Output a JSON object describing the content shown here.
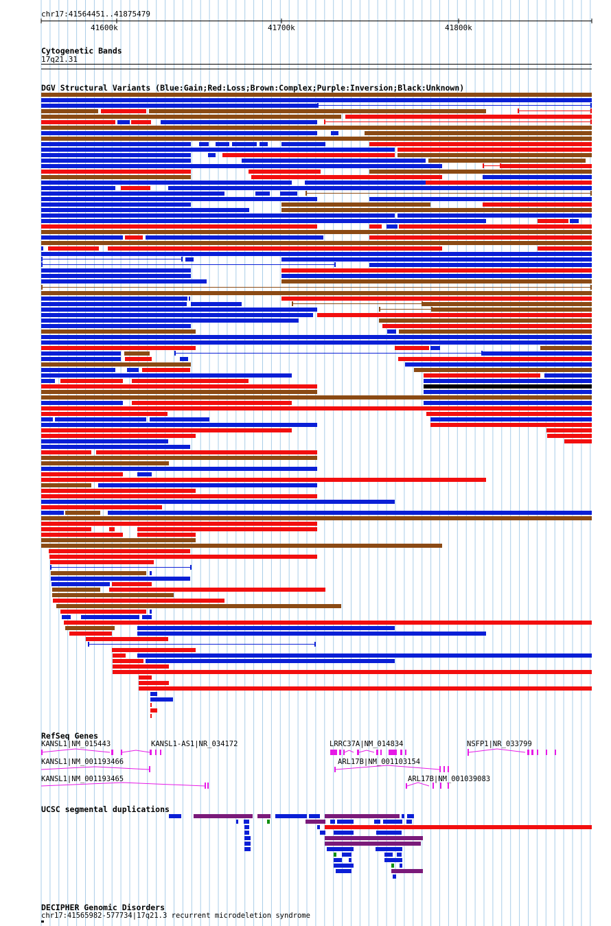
{
  "ruler": {
    "coord_label": "chr17:41564451..41875479",
    "ticks": [
      {
        "label": "41600k",
        "pos": 41600000
      },
      {
        "label": "41700k",
        "pos": 41700000
      },
      {
        "label": "41800k",
        "pos": 41800000
      }
    ],
    "start": 41564451,
    "end": 41875479
  },
  "tracks": {
    "cyto": {
      "title": "Cytogenetic Bands",
      "band": "17q21.31"
    },
    "dgv": {
      "title": "DGV Structural Variants (Blue:Gain;Red:Loss;Brown:Complex;Purple:Inversion;Black:Unknown)"
    },
    "refseq": {
      "title": "RefSeq Genes"
    },
    "segdup": {
      "title": "UCSC segmental duplications"
    },
    "decipher": {
      "title": "DECIPHER Genomic Disorders",
      "item": "chr17:41565982-577734|17q21.3 recurrent microdeletion syndrome"
    }
  },
  "genes": [
    {
      "label": "KANSL1|NM_015443",
      "row": 0
    },
    {
      "label": "KANSL1-AS1|NR_034172",
      "row": 0
    },
    {
      "label": "LRRC37A|NM_014834",
      "row": 0
    },
    {
      "label": "NSFP1|NR_033799",
      "row": 0
    },
    {
      "label": "KANSL1|NM_001193466",
      "row": 1
    },
    {
      "label": "ARL17B|NM_001103154",
      "row": 1
    },
    {
      "label": "KANSL1|NM_001193465",
      "row": 2
    },
    {
      "label": "ARL17B|NM_001039083",
      "row": 2
    }
  ],
  "colors": {
    "gain": "#0a1fd6",
    "loss": "#f20f0f",
    "complex": "#8b4a14",
    "unknown": "#000000",
    "gene": "#e619e6",
    "segdup_purple": "#7a1a7a",
    "segdup_blue": "#0a1fd6",
    "segdup_red": "#f20f0f",
    "segdup_green": "#0f8f0f",
    "grid": "#a9cde8"
  }
}
